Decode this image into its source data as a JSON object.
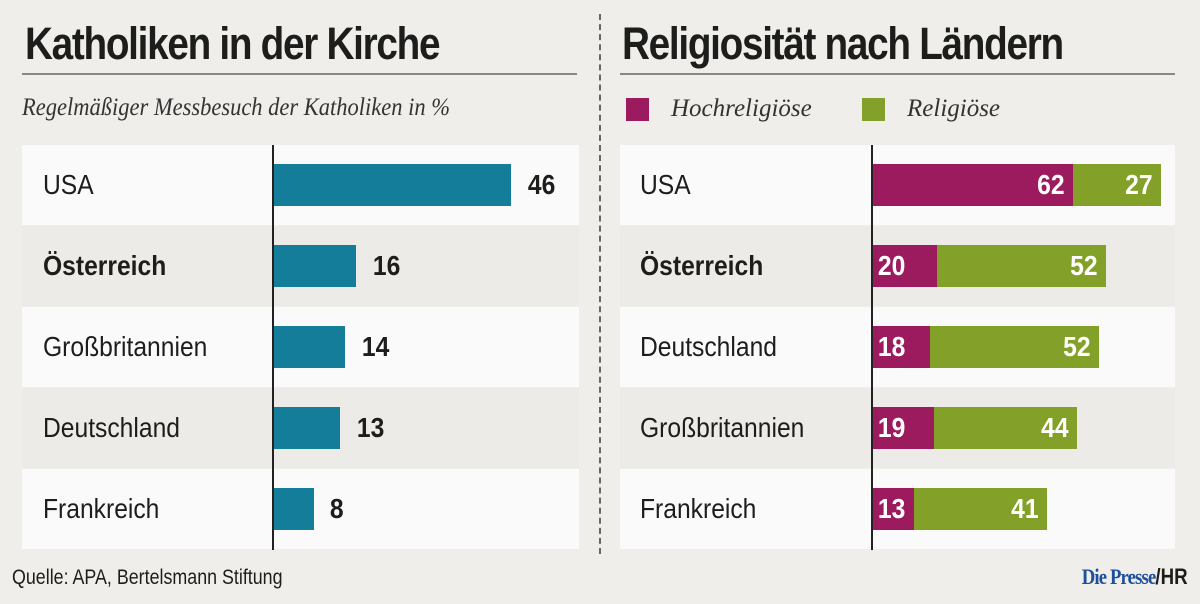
{
  "chart_data": [
    {
      "type": "bar",
      "orientation": "horizontal",
      "title": "Katholiken in der Kirche",
      "subtitle": "Regelmäßiger Messbesuch der Katholiken in %",
      "categories": [
        "USA",
        "Österreich",
        "Großbritannien",
        "Deutschland",
        "Frankreich"
      ],
      "highlight": "Österreich",
      "values": [
        46,
        16,
        14,
        13,
        8
      ],
      "color": "#137d9a",
      "xlim": [
        0,
        50
      ],
      "grid": false
    },
    {
      "type": "bar",
      "orientation": "horizontal",
      "stacked": true,
      "title": "Religiosität nach Ländern",
      "categories": [
        "USA",
        "Österreich",
        "Deutschland",
        "Großbritannien",
        "Frankreich"
      ],
      "highlight": "Österreich",
      "series": [
        {
          "name": "Hochreligiöse",
          "color": "#9b1b5e",
          "values": [
            62,
            20,
            18,
            19,
            13
          ]
        },
        {
          "name": "Religiöse",
          "color": "#83a028",
          "values": [
            27,
            52,
            52,
            44,
            41
          ]
        }
      ],
      "legend_position": "top-left",
      "xlim": [
        0,
        100
      ],
      "grid": false
    }
  ],
  "footer": {
    "source": "Quelle: APA, Bertelsmann Stiftung",
    "brand": "Die Presse",
    "credit_suffix": "/HR"
  }
}
